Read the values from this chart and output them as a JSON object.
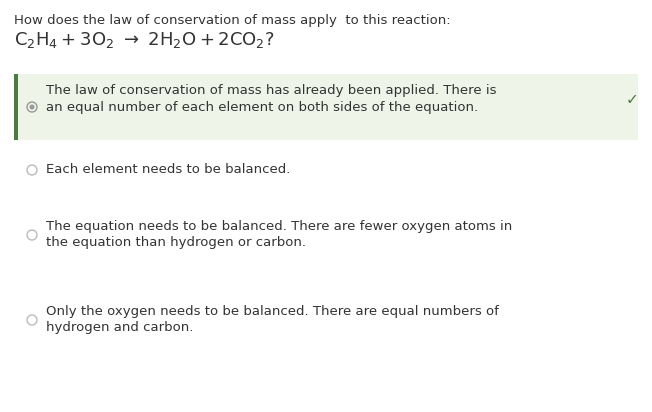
{
  "bg_color": "#ffffff",
  "question_line1": "How does the law of conservation of mass apply  to this reaction:",
  "reaction_equation": "$\\mathregular{C_2H_4 + 3O_2\\ \\rightarrow\\ 2H_2O + 2CO_2?}$",
  "selected_bg": "#eef5e8",
  "selected_border": "#4a7c3f",
  "selected_text_line1": "The law of conservation of mass has already been applied. There is",
  "selected_text_line2": "an equal number of each element on both sides of the equation.",
  "checkmark": "✓",
  "checkmark_color": "#4a7c3f",
  "option2_line1": "Each element needs to be balanced.",
  "option3_line1": "The equation needs to be balanced. There are fewer oxygen atoms in",
  "option3_line2": "the equation than hydrogen or carbon.",
  "option4_line1": "Only the oxygen needs to be balanced. There are equal numbers of",
  "option4_line2": "hydrogen and carbon.",
  "radio_color_empty": "#bbbbbb",
  "radio_color_selected": "#999999",
  "text_color": "#333333",
  "font_size_question": 9.5,
  "font_size_equation": 13,
  "font_size_option": 9.5,
  "fig_width": 6.52,
  "fig_height": 4.12,
  "dpi": 100
}
